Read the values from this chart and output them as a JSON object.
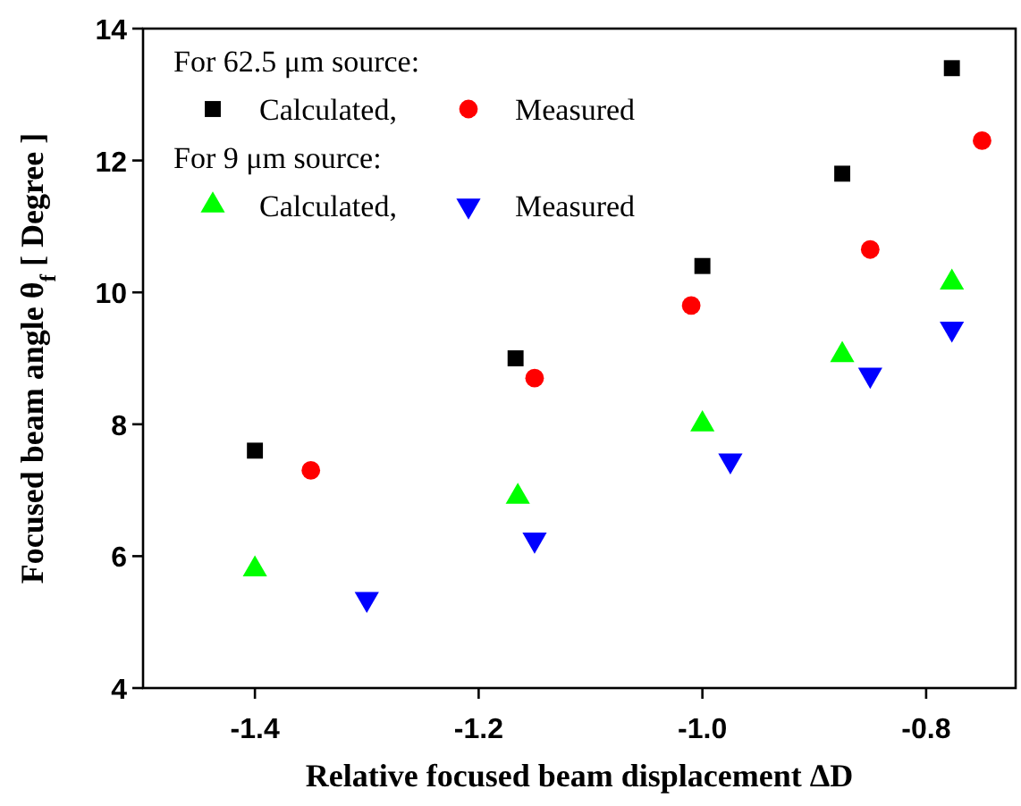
{
  "chart_data": {
    "type": "scatter",
    "xlabel": "Relative focused beam displacement ΔD",
    "ylabel": "Focused beam angle θ$_{f}$ [ Degree ]",
    "annotations": [
      "For 62.5 μm source:",
      "For 9 μm source:"
    ],
    "xlim": [
      -1.5,
      -0.72
    ],
    "xticks": [
      {
        "value": -1.4,
        "label": "-1.4"
      },
      {
        "value": -1.2,
        "label": "-1.2"
      },
      {
        "value": -1.0,
        "label": "-1.0"
      },
      {
        "value": -0.8,
        "label": "-0.8"
      }
    ],
    "ylim": [
      4,
      14
    ],
    "yticks": [
      4,
      6,
      8,
      10,
      12,
      14
    ],
    "grid": false,
    "legend": "top left",
    "series": [
      {
        "name": "Calculated,",
        "color": "#000000",
        "marker": "square",
        "x": [
          -1.4,
          -1.167,
          -1.0,
          -0.875,
          -0.777
        ],
        "values": [
          7.6,
          9.0,
          10.4,
          11.8,
          13.4
        ]
      },
      {
        "name": "Measured",
        "color": "#ff0000",
        "marker": "circle",
        "x": [
          -1.35,
          -1.15,
          -1.01,
          -0.85,
          -0.75
        ],
        "values": [
          7.3,
          8.7,
          9.8,
          10.65,
          12.3
        ]
      },
      {
        "name": "Calculated,",
        "color": "#00ff00",
        "marker": "triangle",
        "x": [
          -1.4,
          -1.165,
          -1.0,
          -0.875,
          -0.777
        ],
        "values": [
          5.8,
          6.9,
          8.0,
          9.05,
          10.15
        ]
      },
      {
        "name": "Measured",
        "color": "#0000ff",
        "marker": "triangle-down",
        "x": [
          -1.3,
          -1.15,
          -0.975,
          -0.85,
          -0.777
        ],
        "values": [
          5.35,
          6.25,
          7.45,
          8.75,
          9.45
        ]
      }
    ]
  }
}
